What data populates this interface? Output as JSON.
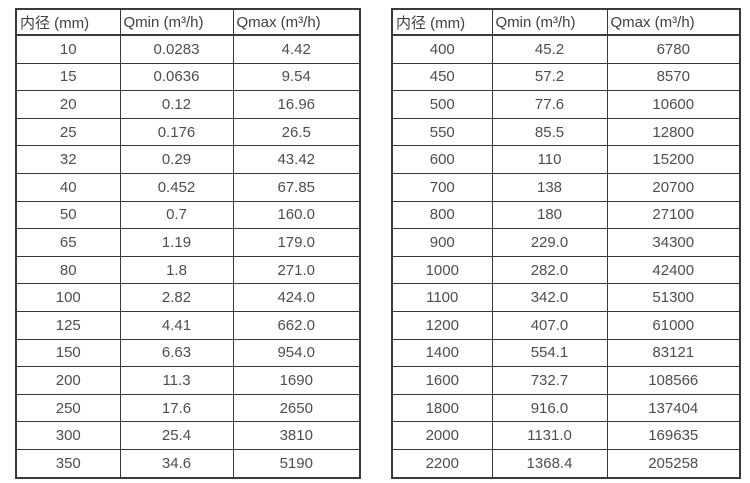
{
  "page": {
    "background_color": "#ffffff",
    "border_color": "#3a3a3a",
    "text_color": "#4e4e4e"
  },
  "tables": [
    {
      "name": "flow-rate-table-small-diameters",
      "headers": [
        "内径 (mm)",
        "Qmin (m³/h)",
        "Qmax (m³/h)"
      ],
      "rows": [
        [
          "10",
          "0.0283",
          "4.42"
        ],
        [
          "15",
          "0.0636",
          "9.54"
        ],
        [
          "20",
          "0.12",
          "16.96"
        ],
        [
          "25",
          "0.176",
          "26.5"
        ],
        [
          "32",
          "0.29",
          "43.42"
        ],
        [
          "40",
          "0.452",
          "67.85"
        ],
        [
          "50",
          "0.7",
          "160.0"
        ],
        [
          "65",
          "1.19",
          "179.0"
        ],
        [
          "80",
          "1.8",
          "271.0"
        ],
        [
          "100",
          "2.82",
          "424.0"
        ],
        [
          "125",
          "4.41",
          "662.0"
        ],
        [
          "150",
          "6.63",
          "954.0"
        ],
        [
          "200",
          "11.3",
          "1690"
        ],
        [
          "250",
          "17.6",
          "2650"
        ],
        [
          "300",
          "25.4",
          "3810"
        ],
        [
          "350",
          "34.6",
          "5190"
        ]
      ]
    },
    {
      "name": "flow-rate-table-large-diameters",
      "headers": [
        "内径 (mm)",
        "Qmin (m³/h)",
        "Qmax (m³/h)"
      ],
      "rows": [
        [
          "400",
          "45.2",
          "6780"
        ],
        [
          "450",
          "57.2",
          "8570"
        ],
        [
          "500",
          "77.6",
          "10600"
        ],
        [
          "550",
          "85.5",
          "12800"
        ],
        [
          "600",
          "110",
          "15200"
        ],
        [
          "700",
          "138",
          "20700"
        ],
        [
          "800",
          "180",
          "27100"
        ],
        [
          "900",
          "229.0",
          "34300"
        ],
        [
          "1000",
          "282.0",
          "42400"
        ],
        [
          "1100",
          "342.0",
          "51300"
        ],
        [
          "1200",
          "407.0",
          "61000"
        ],
        [
          "1400",
          "554.1",
          "83121"
        ],
        [
          "1600",
          "732.7",
          "108566"
        ],
        [
          "1800",
          "916.0",
          "137404"
        ],
        [
          "2000",
          "1131.0",
          "169635"
        ],
        [
          "2200",
          "1368.4",
          "205258"
        ]
      ]
    }
  ]
}
